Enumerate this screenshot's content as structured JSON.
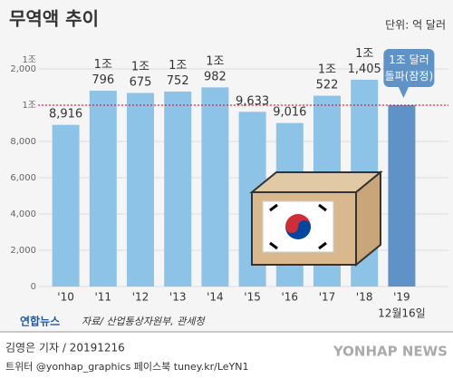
{
  "chart_data": {
    "type": "bar",
    "title": "무역액 추이",
    "unit": "단위: 억 달러",
    "categories": [
      "'10",
      "'11",
      "'12",
      "'13",
      "'14",
      "'15",
      "'16",
      "'17",
      "'18",
      "'19"
    ],
    "x_note": "12월16일",
    "values": [
      8916,
      10796,
      10675,
      10752,
      10982,
      9633,
      9016,
      10522,
      11405,
      10000
    ],
    "value_labels": [
      "8,916",
      "1조\n796",
      "1조\n675",
      "1조\n752",
      "1조\n982",
      "9,633",
      "9,016",
      "1조\n522",
      "1조\n1,405",
      "1조 달러\n돌파(잠정)"
    ],
    "colors": [
      "#8ec3e8",
      "#8ec3e8",
      "#8ec3e8",
      "#8ec3e8",
      "#8ec3e8",
      "#8ec3e8",
      "#8ec3e8",
      "#8ec3e8",
      "#8ec3e8",
      "#5f93c8"
    ],
    "ylim": [
      0,
      12500
    ],
    "yticks": [
      0,
      {
        "value": 2000,
        "label": "2,000"
      },
      {
        "value": 4000,
        "label": "4,000"
      },
      {
        "value": 6000,
        "label": "6,000"
      },
      {
        "value": 8000,
        "label": "8,000"
      },
      {
        "value": 10000,
        "label": "1조"
      },
      {
        "value": 12000,
        "label": "1조\n2,000"
      }
    ],
    "grid": true,
    "reference_line": {
      "value": 10000,
      "color": "#d0021b"
    }
  },
  "footer": {
    "logo": "연합뉴스",
    "source": "자료/ 산업통상자원부, 관세청",
    "byline": "김영은 기자 / 20191216",
    "social": "트위터 @yonhap_graphics  페이스북 tuney.kr/LeYN1",
    "agency": "YONHAP NEWS"
  }
}
